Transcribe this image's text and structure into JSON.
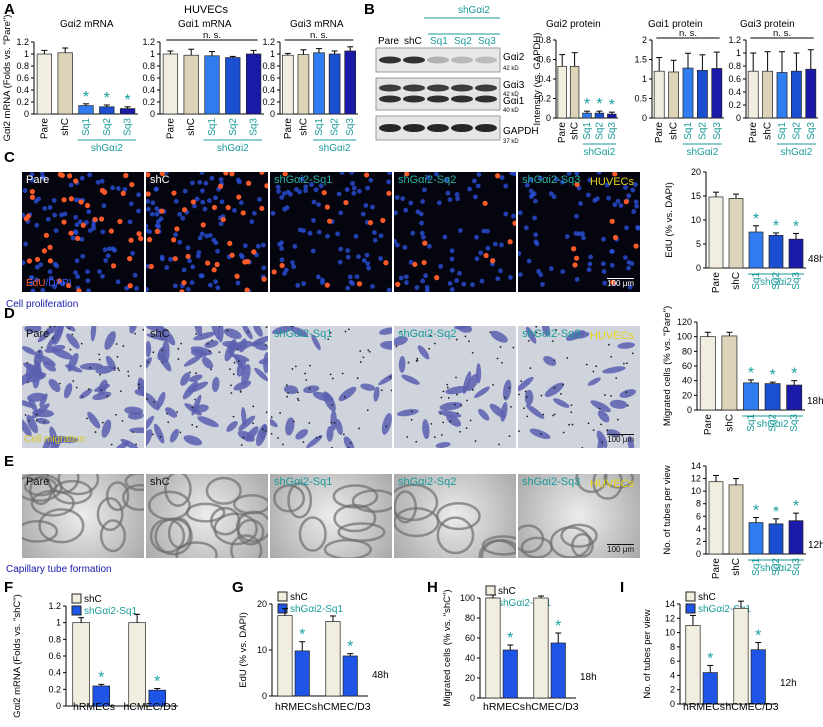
{
  "panels": {
    "A": "A",
    "B": "B",
    "C": "C",
    "D": "D",
    "E": "E",
    "F": "F",
    "G": "G",
    "H": "H",
    "I": "I"
  },
  "header": {
    "huvecs": "HUVECs"
  },
  "colors": {
    "pare": "#f2eedf",
    "shc": "#dcd3b8",
    "sq1": "#2f7df0",
    "sq2": "#1a4fd1",
    "sq3": "#1b1aa8",
    "shc_small": "#f2eedf",
    "sq1_small": "#1f55e6",
    "teal": "#1a9a9a",
    "blue_text": "#1a1aa8",
    "star": "#1aa0a0"
  },
  "labels": {
    "groups5": [
      "Pare",
      "shC",
      "Sq1",
      "Sq2",
      "Sq3"
    ],
    "shGai2": "shGαi2",
    "ns": "n. s.",
    "star": "*",
    "h48": "48h",
    "h18": "18h",
    "h12": "12h",
    "scale": "100 μm",
    "kd42": "42 kD",
    "kd40": "40 kD",
    "kd37": "37 kD",
    "blot_lanes": [
      "Pare",
      "shC",
      "Sq1",
      "Sq2",
      "Sq3"
    ],
    "blot_bands": [
      "Gαi2",
      "Gαi3",
      "Gαi1",
      "GAPDH"
    ],
    "micro_caps": [
      "Pare",
      "shC",
      "shGαi2-Sq1",
      "shGαi2-Sq2",
      "shGαi2-Sq3"
    ],
    "cell_proliferation": "Cell proliferation",
    "cell_migration": "Cell migration",
    "capillary": "Capillary tube formation",
    "edu": "EdU",
    "dapi": "/DAPI",
    "huvecs_tag": "HUVECs",
    "legend_shc": "shC",
    "legend_sq1": "shGαi2-Sq1",
    "cell_lines": [
      "hRMECs",
      "hCMEC/D3"
    ]
  },
  "chart_data": [
    {
      "id": "A1",
      "type": "bar",
      "title": "Gαi2 mRNA",
      "ylabel": "Gαi2 mRNA (Folds vs. \"Pare\")",
      "ylim": [
        0,
        1.2
      ],
      "yticks": [
        "0",
        "0.2",
        "0.4",
        "0.6",
        "0.8",
        "1",
        "1.2"
      ],
      "categories": [
        "Pare",
        "shC",
        "Sq1",
        "Sq2",
        "Sq3"
      ],
      "values": [
        1.0,
        1.02,
        0.14,
        0.12,
        0.09
      ],
      "errors": [
        0.06,
        0.08,
        0.03,
        0.03,
        0.03
      ],
      "sig": [
        false,
        false,
        true,
        true,
        true
      ]
    },
    {
      "id": "A2",
      "type": "bar",
      "title": "Gαi1 mRNA",
      "ylim": [
        0,
        1.2
      ],
      "yticks": [
        "0",
        "0.2",
        "0.4",
        "0.6",
        "0.8",
        "1",
        "1.2"
      ],
      "categories": [
        "Pare",
        "shC",
        "Sq1",
        "Sq2",
        "Sq3"
      ],
      "values": [
        1.0,
        0.98,
        0.97,
        0.94,
        1.0
      ],
      "errors": [
        0.05,
        0.1,
        0.07,
        0.02,
        0.06
      ],
      "ns": true
    },
    {
      "id": "A3",
      "type": "bar",
      "title": "Gαi3 mRNA",
      "ylim": [
        0,
        1.2
      ],
      "yticks": [
        "0",
        "0.2",
        "0.4",
        "0.6",
        "0.8",
        "1",
        "1.2"
      ],
      "categories": [
        "Pare",
        "shC",
        "Sq1",
        "Sq2",
        "Sq3"
      ],
      "values": [
        0.98,
        0.99,
        1.02,
        1.0,
        1.05
      ],
      "errors": [
        0.03,
        0.08,
        0.07,
        0.05,
        0.07
      ],
      "ns": true
    },
    {
      "id": "B1",
      "type": "bar",
      "title": "Gαi2 protein",
      "ylabel": "Intensity (vs. GAPDH)",
      "ylim": [
        0,
        0.8
      ],
      "yticks": [
        "0",
        "0.2",
        "0.4",
        "0.6",
        "0.8"
      ],
      "categories": [
        "Pare",
        "shC",
        "Sq1",
        "Sq2",
        "Sq3"
      ],
      "values": [
        0.53,
        0.53,
        0.05,
        0.05,
        0.04
      ],
      "errors": [
        0.12,
        0.14,
        0.02,
        0.02,
        0.02
      ],
      "sig": [
        false,
        false,
        true,
        true,
        true
      ]
    },
    {
      "id": "B2",
      "type": "bar",
      "title": "Gαi1 protein",
      "ylim": [
        0,
        2
      ],
      "yticks": [
        "0",
        "0.5",
        "1",
        "1.5",
        "2"
      ],
      "categories": [
        "Pare",
        "shC",
        "Sq1",
        "Sq2",
        "Sq3"
      ],
      "values": [
        1.2,
        1.18,
        1.28,
        1.22,
        1.27
      ],
      "errors": [
        0.35,
        0.3,
        0.38,
        0.4,
        0.42
      ],
      "ns": true
    },
    {
      "id": "B3",
      "type": "bar",
      "title": "Gαi3 protein",
      "ylim": [
        0,
        1.2
      ],
      "yticks": [
        "0",
        "0.2",
        "0.4",
        "0.6",
        "0.8",
        "1",
        "1.2"
      ],
      "categories": [
        "Pare",
        "shC",
        "Sq1",
        "Sq2",
        "Sq3"
      ],
      "values": [
        0.72,
        0.72,
        0.7,
        0.72,
        0.75
      ],
      "errors": [
        0.28,
        0.3,
        0.32,
        0.28,
        0.3
      ],
      "ns": true
    },
    {
      "id": "C",
      "type": "bar",
      "ylabel": "EdU (% vs. DAPI)",
      "ylim": [
        0,
        20
      ],
      "yticks": [
        "0",
        "5",
        "10",
        "15",
        "20"
      ],
      "categories": [
        "Pare",
        "shC",
        "Sq1",
        "Sq2",
        "Sq3"
      ],
      "values": [
        14.8,
        14.5,
        7.5,
        6.8,
        6.0
      ],
      "errors": [
        1.0,
        0.9,
        1.3,
        0.5,
        1.2
      ],
      "sig": [
        false,
        false,
        true,
        true,
        true
      ]
    },
    {
      "id": "D",
      "type": "bar",
      "ylabel": "Migrated cells (% vs. \"Pare\")",
      "ylim": [
        0,
        120
      ],
      "yticks": [
        "0",
        "20",
        "40",
        "60",
        "80",
        "100",
        "120"
      ],
      "categories": [
        "Pare",
        "shC",
        "Sq1",
        "Sq2",
        "Sq3"
      ],
      "values": [
        100,
        101,
        37,
        36,
        34
      ],
      "errors": [
        6,
        5,
        4,
        2,
        6
      ],
      "sig": [
        false,
        false,
        true,
        true,
        true
      ]
    },
    {
      "id": "E",
      "type": "bar",
      "ylabel": "No. of tubes per view",
      "ylim": [
        0,
        14
      ],
      "yticks": [
        "0",
        "2",
        "4",
        "6",
        "8",
        "10",
        "12",
        "14"
      ],
      "categories": [
        "Pare",
        "shC",
        "Sq1",
        "Sq2",
        "Sq3"
      ],
      "values": [
        11.5,
        11.0,
        5.0,
        4.8,
        5.3
      ],
      "errors": [
        1.0,
        1.0,
        0.8,
        0.8,
        1.2
      ],
      "sig": [
        false,
        false,
        true,
        true,
        true
      ]
    },
    {
      "id": "F",
      "type": "bar",
      "ylabel": "Gαi2 mRNA (Folds vs. \"shC\")",
      "ylim": [
        0,
        1.2
      ],
      "yticks": [
        "0",
        "0.2",
        "0.4",
        "0.6",
        "0.8",
        "1",
        "1.2"
      ],
      "categories": [
        "hRMECs",
        "hCMEC/D3"
      ],
      "series": [
        {
          "name": "shC",
          "values": [
            1.0,
            1.0
          ],
          "errors": [
            0.06,
            0.1
          ]
        },
        {
          "name": "shGαi2-Sq1",
          "values": [
            0.24,
            0.19
          ],
          "errors": [
            0.02,
            0.02
          ]
        }
      ]
    },
    {
      "id": "G",
      "type": "bar",
      "ylabel": "EdU (% vs. DAPI)",
      "ylim": [
        0,
        20
      ],
      "yticks": [
        "0",
        "10",
        "20"
      ],
      "categories": [
        "hRMECs",
        "hCMEC/D3"
      ],
      "series": [
        {
          "name": "shC",
          "values": [
            17.5,
            16.2
          ],
          "errors": [
            1.5,
            1.2
          ]
        },
        {
          "name": "shGαi2-Sq1",
          "values": [
            9.8,
            8.7
          ],
          "errors": [
            2.0,
            0.5
          ]
        }
      ]
    },
    {
      "id": "H",
      "type": "bar",
      "ylabel": "Migrated cells (% vs. \"shC\")",
      "ylim": [
        0,
        100
      ],
      "yticks": [
        "0",
        "20",
        "40",
        "60",
        "80",
        "100"
      ],
      "categories": [
        "hRMECs",
        "hCMEC/D3"
      ],
      "series": [
        {
          "name": "shC",
          "values": [
            100,
            100
          ],
          "errors": [
            3,
            2
          ]
        },
        {
          "name": "shGαi2-Sq1",
          "values": [
            48,
            55
          ],
          "errors": [
            5,
            10
          ]
        }
      ]
    },
    {
      "id": "I",
      "type": "bar",
      "ylabel": "No. of tubes per view",
      "ylim": [
        0,
        14
      ],
      "yticks": [
        "0",
        "2",
        "4",
        "6",
        "8",
        "10",
        "12",
        "14"
      ],
      "categories": [
        "hRMECs",
        "hCMEC/D3"
      ],
      "series": [
        {
          "name": "shC",
          "values": [
            11.0,
            13.4
          ],
          "errors": [
            1.4,
            1.0
          ]
        },
        {
          "name": "shGαi2-Sq1",
          "values": [
            4.4,
            7.6
          ],
          "errors": [
            1.0,
            1.0
          ]
        }
      ]
    }
  ]
}
